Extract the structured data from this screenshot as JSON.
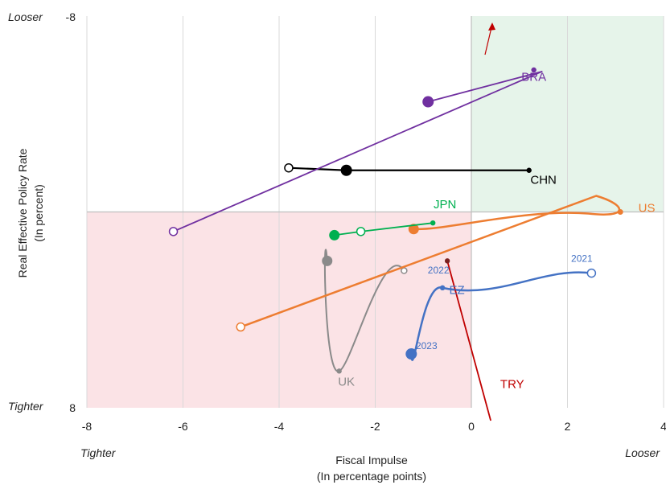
{
  "chart_data": {
    "type": "scatter",
    "xlabel": [
      "Fiscal Impulse",
      "(In percentage points)"
    ],
    "ylabel": [
      "Real Effective Policy Rate",
      "(In percent)"
    ],
    "xlim": [
      -8,
      4
    ],
    "ylim": [
      8,
      -8
    ],
    "x_ticks": [
      "-8",
      "-6",
      "-4",
      "-2",
      "0",
      "2",
      "4"
    ],
    "y_ticks": [
      "-8",
      "-6",
      "-4",
      "-2",
      "0",
      "2",
      "4",
      "6",
      "8"
    ],
    "grid": true,
    "corner_labels": {
      "top_left": "Looser",
      "bottom_left": "Tighter",
      "x_left": "Tighter",
      "x_right": "Looser"
    },
    "quadrant_shading": [
      {
        "region": "x >= 0, y <= 0",
        "color": "#e6f4ea"
      },
      {
        "region": "x <= 0, y >= 0",
        "color": "#fbe3e6"
      }
    ],
    "series": [
      {
        "name": "UK",
        "color": "#8a8a8a",
        "points": [
          [
            -1.4,
            -2.4
          ],
          [
            -2.75,
            -6.5
          ],
          [
            -3.0,
            -2.0
          ]
        ],
        "label_pos": [
          -2.6,
          -7.1
        ]
      },
      {
        "name": "EZ",
        "color": "#4472c4",
        "points": [
          [
            2.5,
            -2.5
          ],
          [
            -0.6,
            -3.1
          ],
          [
            -1.25,
            -5.8
          ]
        ],
        "point_labels": [
          "2021",
          "2022",
          "2023"
        ],
        "label_pos": [
          -0.3,
          -3.35
        ]
      },
      {
        "name": "TRY",
        "color": "#c00000",
        "points": [
          [
            -0.5,
            -2.0
          ],
          [
            0.4,
            -8.5
          ]
        ],
        "label_pos": [
          0.85,
          -7.2
        ]
      },
      {
        "name": "US",
        "color": "#ed7d31",
        "points": [
          [
            -4.8,
            -4.7
          ],
          [
            3.1,
            0.0
          ],
          [
            -1.2,
            -0.7
          ]
        ],
        "label_pos": [
          3.65,
          0.0
        ]
      },
      {
        "name": "JPN",
        "color": "#00b050",
        "points": [
          [
            -2.3,
            -0.8
          ],
          [
            -0.8,
            -0.45
          ],
          [
            -2.85,
            -0.95
          ]
        ],
        "label_pos": [
          -0.55,
          0.15
        ]
      },
      {
        "name": "CHN",
        "color": "#000000",
        "points": [
          [
            -3.8,
            1.8
          ],
          [
            1.2,
            1.7
          ],
          [
            -2.6,
            1.7
          ]
        ],
        "label_pos": [
          1.5,
          1.15
        ]
      },
      {
        "name": "BRA",
        "color": "#7030a0",
        "points": [
          [
            -6.2,
            -0.8
          ],
          [
            1.3,
            5.8
          ],
          [
            -0.9,
            4.5
          ]
        ],
        "label_pos": [
          1.3,
          5.35
        ]
      }
    ]
  }
}
